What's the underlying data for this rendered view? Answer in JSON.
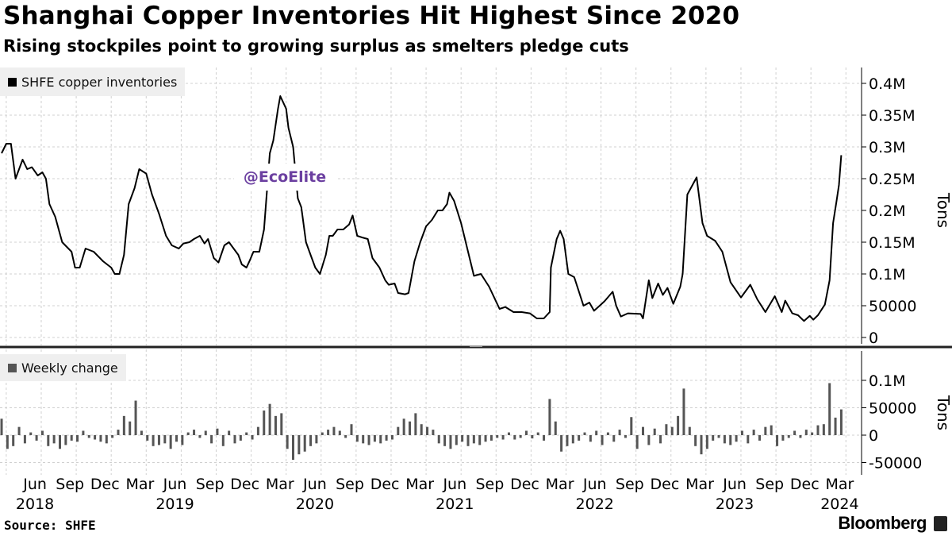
{
  "header": {
    "title": "Shanghai Copper Inventories Hit Highest Since 2020",
    "subtitle": "Rising stockpiles point to growing surplus as smelters pledge cuts"
  },
  "watermark": "@EcoElite",
  "footer": {
    "source": "Source: SHFE",
    "brand": "Bloomberg"
  },
  "colors": {
    "line": "#000000",
    "bars": "#555555",
    "watermark": "#6b3fa0",
    "grid": "#cccccc",
    "legend_bg": "#efefef"
  },
  "chart_data": [
    {
      "type": "line",
      "title": "Shanghai Copper Inventories Hit Highest Since 2020",
      "legend": [
        "SHFE copper inventories"
      ],
      "legend_placement": "top-left",
      "ylabel": "Tons",
      "x_unit": "months since Jan 2018",
      "y_unit": "thousand tons",
      "ylim": [
        0,
        420
      ],
      "yticks": [
        {
          "v": 0,
          "label": "0"
        },
        {
          "v": 50,
          "label": "50000"
        },
        {
          "v": 100,
          "label": "0.1M"
        },
        {
          "v": 150,
          "label": "0.15M"
        },
        {
          "v": 200,
          "label": "0.2M"
        },
        {
          "v": 250,
          "label": "0.25M"
        },
        {
          "v": 300,
          "label": "0.3M"
        },
        {
          "v": 350,
          "label": "0.35M"
        },
        {
          "v": 400,
          "label": "0.4M"
        }
      ],
      "grid": true,
      "series": [
        {
          "name": "SHFE copper inventories",
          "points": [
            [
              2.0,
              290
            ],
            [
              2.4,
              305
            ],
            [
              2.8,
              305
            ],
            [
              3.2,
              250
            ],
            [
              3.8,
              280
            ],
            [
              4.2,
              265
            ],
            [
              4.6,
              268
            ],
            [
              5.1,
              255
            ],
            [
              5.5,
              260
            ],
            [
              5.8,
              250
            ],
            [
              6.1,
              210
            ],
            [
              6.6,
              190
            ],
            [
              7.2,
              150
            ],
            [
              8.0,
              135
            ],
            [
              8.3,
              110
            ],
            [
              8.7,
              110
            ],
            [
              9.2,
              140
            ],
            [
              9.9,
              135
            ],
            [
              10.7,
              120
            ],
            [
              11.4,
              110
            ],
            [
              11.7,
              100
            ],
            [
              12.1,
              100
            ],
            [
              12.5,
              130
            ],
            [
              12.9,
              210
            ],
            [
              13.4,
              235
            ],
            [
              13.8,
              265
            ],
            [
              14.4,
              258
            ],
            [
              14.9,
              225
            ],
            [
              15.5,
              195
            ],
            [
              16.1,
              160
            ],
            [
              16.6,
              145
            ],
            [
              17.2,
              140
            ],
            [
              17.6,
              148
            ],
            [
              18.1,
              150
            ],
            [
              18.5,
              155
            ],
            [
              19.0,
              160
            ],
            [
              19.4,
              148
            ],
            [
              19.7,
              155
            ],
            [
              20.2,
              125
            ],
            [
              20.6,
              118
            ],
            [
              21.1,
              145
            ],
            [
              21.5,
              150
            ],
            [
              21.9,
              140
            ],
            [
              22.3,
              130
            ],
            [
              22.6,
              115
            ],
            [
              23.0,
              110
            ],
            [
              23.3,
              122
            ],
            [
              23.6,
              135
            ],
            [
              24.1,
              135
            ],
            [
              24.5,
              170
            ],
            [
              25.0,
              290
            ],
            [
              25.3,
              310
            ],
            [
              25.7,
              360
            ],
            [
              25.9,
              380
            ],
            [
              26.4,
              360
            ],
            [
              26.6,
              330
            ],
            [
              27.0,
              300
            ],
            [
              27.4,
              219
            ],
            [
              27.7,
              205
            ],
            [
              28.1,
              150
            ],
            [
              28.5,
              130
            ],
            [
              28.9,
              110
            ],
            [
              29.3,
              100
            ],
            [
              29.8,
              130
            ],
            [
              30.1,
              160
            ],
            [
              30.4,
              160
            ],
            [
              30.8,
              170
            ],
            [
              31.3,
              170
            ],
            [
              31.8,
              178
            ],
            [
              32.1,
              192
            ],
            [
              32.5,
              160
            ],
            [
              33.0,
              157
            ],
            [
              33.4,
              155
            ],
            [
              33.8,
              125
            ],
            [
              34.4,
              110
            ],
            [
              34.9,
              90
            ],
            [
              35.2,
              83
            ],
            [
              35.7,
              85
            ],
            [
              36.0,
              70
            ],
            [
              36.6,
              68
            ],
            [
              36.9,
              70
            ],
            [
              37.4,
              120
            ],
            [
              37.9,
              150
            ],
            [
              38.4,
              175
            ],
            [
              38.9,
              185
            ],
            [
              39.4,
              200
            ],
            [
              39.8,
              200
            ],
            [
              40.2,
              210
            ],
            [
              40.4,
              228
            ],
            [
              40.8,
              215
            ],
            [
              41.4,
              180
            ],
            [
              42.5,
              97
            ],
            [
              43.1,
              100
            ],
            [
              43.8,
              80
            ],
            [
              44.7,
              45
            ],
            [
              45.2,
              48
            ],
            [
              45.9,
              40
            ],
            [
              46.6,
              40
            ],
            [
              47.3,
              38
            ],
            [
              47.9,
              30
            ],
            [
              48.5,
              30
            ],
            [
              49.0,
              40
            ],
            [
              49.1,
              110
            ],
            [
              49.6,
              155
            ],
            [
              49.9,
              168
            ],
            [
              50.2,
              155
            ],
            [
              50.6,
              100
            ],
            [
              51.1,
              95
            ],
            [
              51.9,
              50
            ],
            [
              52.4,
              55
            ],
            [
              52.8,
              42
            ],
            [
              53.7,
              57
            ],
            [
              54.4,
              72
            ],
            [
              54.7,
              50
            ],
            [
              55.1,
              33
            ],
            [
              55.7,
              38
            ],
            [
              56.8,
              37
            ],
            [
              57.0,
              30
            ],
            [
              57.5,
              90
            ],
            [
              57.8,
              62
            ],
            [
              58.3,
              85
            ],
            [
              58.7,
              67
            ],
            [
              59.1,
              78
            ],
            [
              59.6,
              53
            ],
            [
              60.2,
              80
            ],
            [
              60.4,
              100
            ],
            [
              60.8,
              225
            ],
            [
              61.6,
              252
            ],
            [
              62.1,
              180
            ],
            [
              62.5,
              160
            ],
            [
              63.2,
              152
            ],
            [
              63.8,
              135
            ],
            [
              64.5,
              87
            ],
            [
              65.4,
              63
            ],
            [
              66.2,
              83
            ],
            [
              66.8,
              60
            ],
            [
              67.5,
              40
            ],
            [
              68.3,
              65
            ],
            [
              68.9,
              40
            ],
            [
              69.2,
              58
            ],
            [
              69.8,
              38
            ],
            [
              70.3,
              35
            ],
            [
              70.8,
              26
            ],
            [
              71.3,
              34
            ],
            [
              71.6,
              28
            ],
            [
              72.0,
              35
            ],
            [
              72.6,
              52
            ],
            [
              73.0,
              90
            ],
            [
              73.3,
              180
            ],
            [
              73.6,
              215
            ],
            [
              73.8,
              240
            ],
            [
              74.0,
              287
            ]
          ]
        }
      ]
    },
    {
      "type": "bar",
      "legend": [
        "Weekly change"
      ],
      "legend_placement": "top-left",
      "ylabel": "Tons",
      "x_unit": "months since Jan 2018",
      "y_unit": "thousand tons",
      "ylim": [
        -60,
        140
      ],
      "yticks": [
        {
          "v": -50,
          "label": "-50000"
        },
        {
          "v": 0,
          "label": "0"
        },
        {
          "v": 50,
          "label": "50000"
        },
        {
          "v": 100,
          "label": "0.1M"
        }
      ],
      "grid": true,
      "x_start": 2,
      "x_step": 0.5,
      "values": [
        30,
        -25,
        -20,
        15,
        -15,
        5,
        -10,
        8,
        -20,
        -15,
        -25,
        -18,
        -10,
        -12,
        8,
        -5,
        -8,
        -12,
        -15,
        -5,
        10,
        35,
        25,
        63,
        8,
        -10,
        -20,
        -18,
        -15,
        -25,
        -12,
        -18,
        5,
        10,
        -5,
        8,
        -15,
        12,
        -20,
        8,
        -15,
        -10,
        5,
        -8,
        15,
        45,
        57,
        35,
        40,
        -25,
        -45,
        -35,
        -30,
        -20,
        -15,
        5,
        10,
        15,
        8,
        -5,
        20,
        -12,
        -15,
        -18,
        -12,
        -15,
        -10,
        -8,
        15,
        30,
        25,
        40,
        20,
        15,
        10,
        -15,
        -20,
        -25,
        -18,
        -12,
        -20,
        -15,
        -18,
        -12,
        -10,
        -5,
        -8,
        5,
        -8,
        -5,
        8,
        -6,
        5,
        -10,
        66,
        25,
        -30,
        -20,
        -15,
        -10,
        5,
        -12,
        8,
        -18,
        5,
        -12,
        10,
        -5,
        33,
        -25,
        15,
        -18,
        12,
        -15,
        20,
        15,
        35,
        85,
        15,
        -20,
        -35,
        -25,
        -10,
        -5,
        -15,
        -18,
        -12,
        8,
        -15,
        10,
        -10,
        15,
        18,
        -20,
        -10,
        -5,
        8,
        -5,
        10,
        5,
        18,
        20,
        95,
        32,
        47
      ]
    }
  ],
  "x_axis": {
    "months": [
      {
        "m": 5,
        "label": "Jun"
      },
      {
        "m": 8,
        "label": "Sep"
      },
      {
        "m": 11,
        "label": "Dec"
      },
      {
        "m": 14,
        "label": "Mar"
      },
      {
        "m": 17,
        "label": "Jun"
      },
      {
        "m": 20,
        "label": "Sep"
      },
      {
        "m": 23,
        "label": "Dec"
      },
      {
        "m": 26,
        "label": "Mar"
      },
      {
        "m": 29,
        "label": "Jun"
      },
      {
        "m": 32,
        "label": "Sep"
      },
      {
        "m": 35,
        "label": "Dec"
      },
      {
        "m": 38,
        "label": "Mar"
      },
      {
        "m": 41,
        "label": "Jun"
      },
      {
        "m": 44,
        "label": "Sep"
      },
      {
        "m": 47,
        "label": "Dec"
      },
      {
        "m": 50,
        "label": "Mar"
      },
      {
        "m": 53,
        "label": "Jun"
      },
      {
        "m": 56,
        "label": "Sep"
      },
      {
        "m": 59,
        "label": "Dec"
      },
      {
        "m": 62,
        "label": "Mar"
      },
      {
        "m": 65,
        "label": "Jun"
      },
      {
        "m": 68,
        "label": "Sep"
      },
      {
        "m": 71,
        "label": "Dec"
      },
      {
        "m": 74,
        "label": "Mar"
      }
    ],
    "years": [
      {
        "m": 5,
        "label": "2018"
      },
      {
        "m": 17,
        "label": "2019"
      },
      {
        "m": 29,
        "label": "2020"
      },
      {
        "m": 41,
        "label": "2021"
      },
      {
        "m": 53,
        "label": "2022"
      },
      {
        "m": 65,
        "label": "2023"
      },
      {
        "m": 74,
        "label": "2024"
      }
    ]
  }
}
